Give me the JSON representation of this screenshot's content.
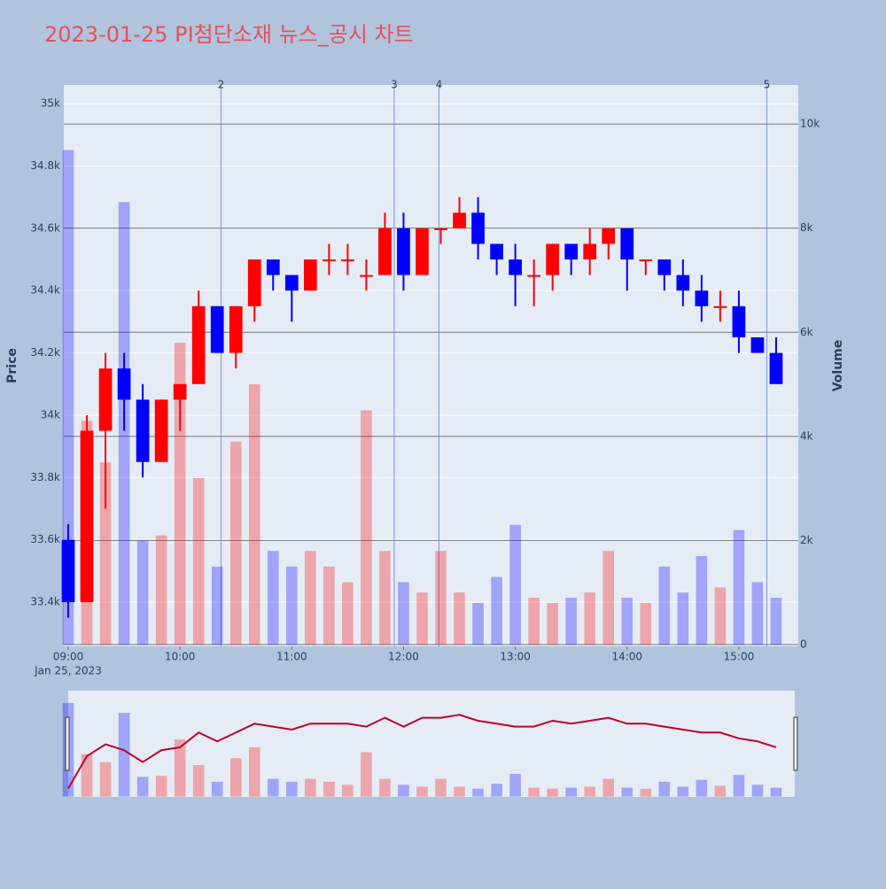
{
  "chart_data": {
    "type": "candlestick",
    "title": "2023-01-25 PI첨단소재 뉴스_공시 차트",
    "y_label": "Price",
    "y2_label": "Volume",
    "x_date_label": "Jan 25, 2023",
    "increasing_color": "#ff0000",
    "decreasing_color": "#0000ff",
    "x": [
      "2023-01-25 09:00",
      "2023-01-25 09:10",
      "2023-01-25 09:20",
      "2023-01-25 09:30",
      "2023-01-25 09:40",
      "2023-01-25 09:50",
      "2023-01-25 10:00",
      "2023-01-25 10:10",
      "2023-01-25 10:20",
      "2023-01-25 10:30",
      "2023-01-25 10:40",
      "2023-01-25 10:50",
      "2023-01-25 11:00",
      "2023-01-25 11:10",
      "2023-01-25 11:20",
      "2023-01-25 11:30",
      "2023-01-25 11:40",
      "2023-01-25 11:50",
      "2023-01-25 12:00",
      "2023-01-25 12:10",
      "2023-01-25 12:20",
      "2023-01-25 12:30",
      "2023-01-25 12:40",
      "2023-01-25 12:50",
      "2023-01-25 13:00",
      "2023-01-25 13:10",
      "2023-01-25 13:20",
      "2023-01-25 13:30",
      "2023-01-25 13:40",
      "2023-01-25 13:50",
      "2023-01-25 14:00",
      "2023-01-25 14:10",
      "2023-01-25 14:20",
      "2023-01-25 14:30",
      "2023-01-25 14:40",
      "2023-01-25 14:50",
      "2023-01-25 15:00",
      "2023-01-25 15:10",
      "2023-01-25 15:20"
    ],
    "open": [
      33600,
      33400,
      33950,
      34150,
      34050,
      33850,
      34050,
      34100,
      34350,
      34200,
      34350,
      34500,
      34450,
      34400,
      34500,
      34500,
      34450,
      34450,
      34600,
      34450,
      34600,
      34600,
      34650,
      34550,
      34500,
      34450,
      34450,
      34550,
      34500,
      34550,
      34600,
      34500,
      34500,
      34450,
      34400,
      34350,
      34350,
      34250,
      34200
    ],
    "high": [
      33650,
      34000,
      34200,
      34200,
      34100,
      34050,
      34100,
      34400,
      34350,
      34350,
      34500,
      34500,
      34450,
      34500,
      34550,
      34550,
      34500,
      34650,
      34650,
      34600,
      34600,
      34700,
      34700,
      34550,
      34550,
      34500,
      34550,
      34550,
      34600,
      34600,
      34600,
      34500,
      34500,
      34500,
      34450,
      34400,
      34400,
      34250,
      34250
    ],
    "low": [
      33350,
      33400,
      33700,
      33950,
      33800,
      33850,
      33950,
      34100,
      34200,
      34150,
      34300,
      34400,
      34300,
      34400,
      34450,
      34450,
      34400,
      34450,
      34400,
      34450,
      34550,
      34600,
      34500,
      34450,
      34350,
      34350,
      34400,
      34450,
      34450,
      34500,
      34400,
      34450,
      34400,
      34350,
      34300,
      34300,
      34200,
      34200,
      34100
    ],
    "close": [
      33400,
      33950,
      34150,
      34050,
      33850,
      34050,
      34100,
      34350,
      34200,
      34350,
      34500,
      34450,
      34400,
      34500,
      34500,
      34500,
      34450,
      34600,
      34450,
      34600,
      34600,
      34650,
      34550,
      34500,
      34450,
      34450,
      34550,
      34500,
      34550,
      34600,
      34500,
      34500,
      34450,
      34400,
      34350,
      34350,
      34250,
      34200,
      34100
    ],
    "volume": [
      9500,
      4300,
      3500,
      8500,
      2000,
      2100,
      5800,
      3200,
      1500,
      3900,
      5000,
      1800,
      1500,
      1800,
      1500,
      1200,
      4500,
      1800,
      1200,
      1000,
      1800,
      1000,
      800,
      1300,
      2300,
      900,
      800,
      900,
      1000,
      1800,
      900,
      800,
      1500,
      1000,
      1700,
      1100,
      2200,
      1200,
      900
    ],
    "xlim": [
      "2023-01-25 09:00",
      "2023-01-25 15:30"
    ],
    "xticks": [
      {
        "value": "2023-01-25 09:00",
        "label": "09:00"
      },
      {
        "value": "2023-01-25 10:00",
        "label": "10:00"
      },
      {
        "value": "2023-01-25 11:00",
        "label": "11:00"
      },
      {
        "value": "2023-01-25 12:00",
        "label": "12:00"
      },
      {
        "value": "2023-01-25 13:00",
        "label": "13:00"
      },
      {
        "value": "2023-01-25 14:00",
        "label": "14:00"
      },
      {
        "value": "2023-01-25 15:00",
        "label": "15:00"
      }
    ],
    "ylim": [
      33258,
      35060
    ],
    "yticks": [
      {
        "value": 33400,
        "label": "33.4k"
      },
      {
        "value": 33600,
        "label": "33.6k"
      },
      {
        "value": 33800,
        "label": "33.8k"
      },
      {
        "value": 34000,
        "label": "34k"
      },
      {
        "value": 34200,
        "label": "34.2k"
      },
      {
        "value": 34400,
        "label": "34.4k"
      },
      {
        "value": 34600,
        "label": "34.6k"
      },
      {
        "value": 34800,
        "label": "34.8k"
      },
      {
        "value": 35000,
        "label": "35k"
      }
    ],
    "y2lim": [
      -34,
      10750
    ],
    "y2ticks": [
      0,
      {
        "value": 2000,
        "label": "2k"
      },
      {
        "value": 4000,
        "label": "4k"
      },
      {
        "value": 6000,
        "label": "6k"
      },
      {
        "value": 8000,
        "label": "8k"
      },
      {
        "value": 10000,
        "label": "10k"
      }
    ],
    "news": [
      {
        "x": "2023-01-25 10:22",
        "label": "2"
      },
      {
        "x": "2023-01-25 11:55",
        "label": "3"
      },
      {
        "x": "2023-01-25 12:19",
        "label": "4"
      },
      {
        "x": "2023-01-25 15:15",
        "label": "5"
      }
    ],
    "grid": true,
    "rangeslider": true
  }
}
